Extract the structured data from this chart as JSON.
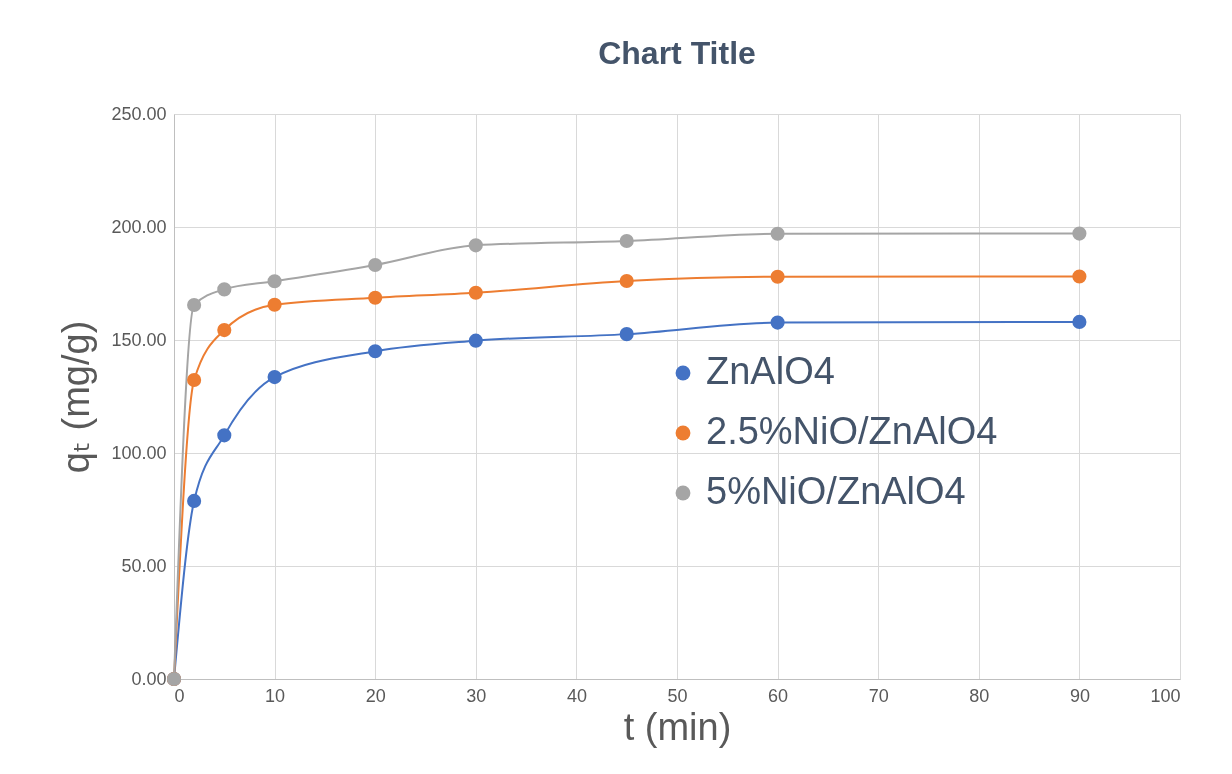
{
  "chart_data": {
    "type": "line",
    "title": "Chart Title",
    "xlabel": "t (min)",
    "ylabel": "qₜ (mg/g)",
    "x": [
      0,
      2,
      5,
      10,
      20,
      30,
      45,
      60,
      90
    ],
    "series": [
      {
        "name": "ZnAlO4",
        "color": "#4472c4",
        "values": [
          0,
          78.8,
          107.8,
          133.6,
          145,
          149.7,
          152.6,
          157.7,
          158
        ]
      },
      {
        "name": "2.5%NiO/ZnAlO4",
        "color": "#ed7d31",
        "values": [
          0,
          132.3,
          154.4,
          165.6,
          168.7,
          170.9,
          176.1,
          178,
          178.1
        ]
      },
      {
        "name": "5%NiO/ZnAlO4",
        "color": "#a5a5a5",
        "values": [
          0,
          165.5,
          172.4,
          176,
          183.2,
          191.9,
          193.8,
          197,
          197.1
        ]
      }
    ],
    "xlim": [
      0,
      100
    ],
    "xticks": [
      0,
      10,
      20,
      30,
      40,
      50,
      60,
      70,
      80,
      90,
      100
    ],
    "ylim": [
      0,
      250
    ],
    "yticks": [
      {
        "value": 0,
        "label": "0.00"
      },
      {
        "value": 50,
        "label": "50.00"
      },
      {
        "value": 100,
        "label": "100.00"
      },
      {
        "value": 150,
        "label": "150.00"
      },
      {
        "value": 200,
        "label": "200.00"
      },
      {
        "value": 250,
        "label": "250.00"
      }
    ],
    "grid": true,
    "legend": "right",
    "marker": "circle",
    "line_style": "solid"
  }
}
